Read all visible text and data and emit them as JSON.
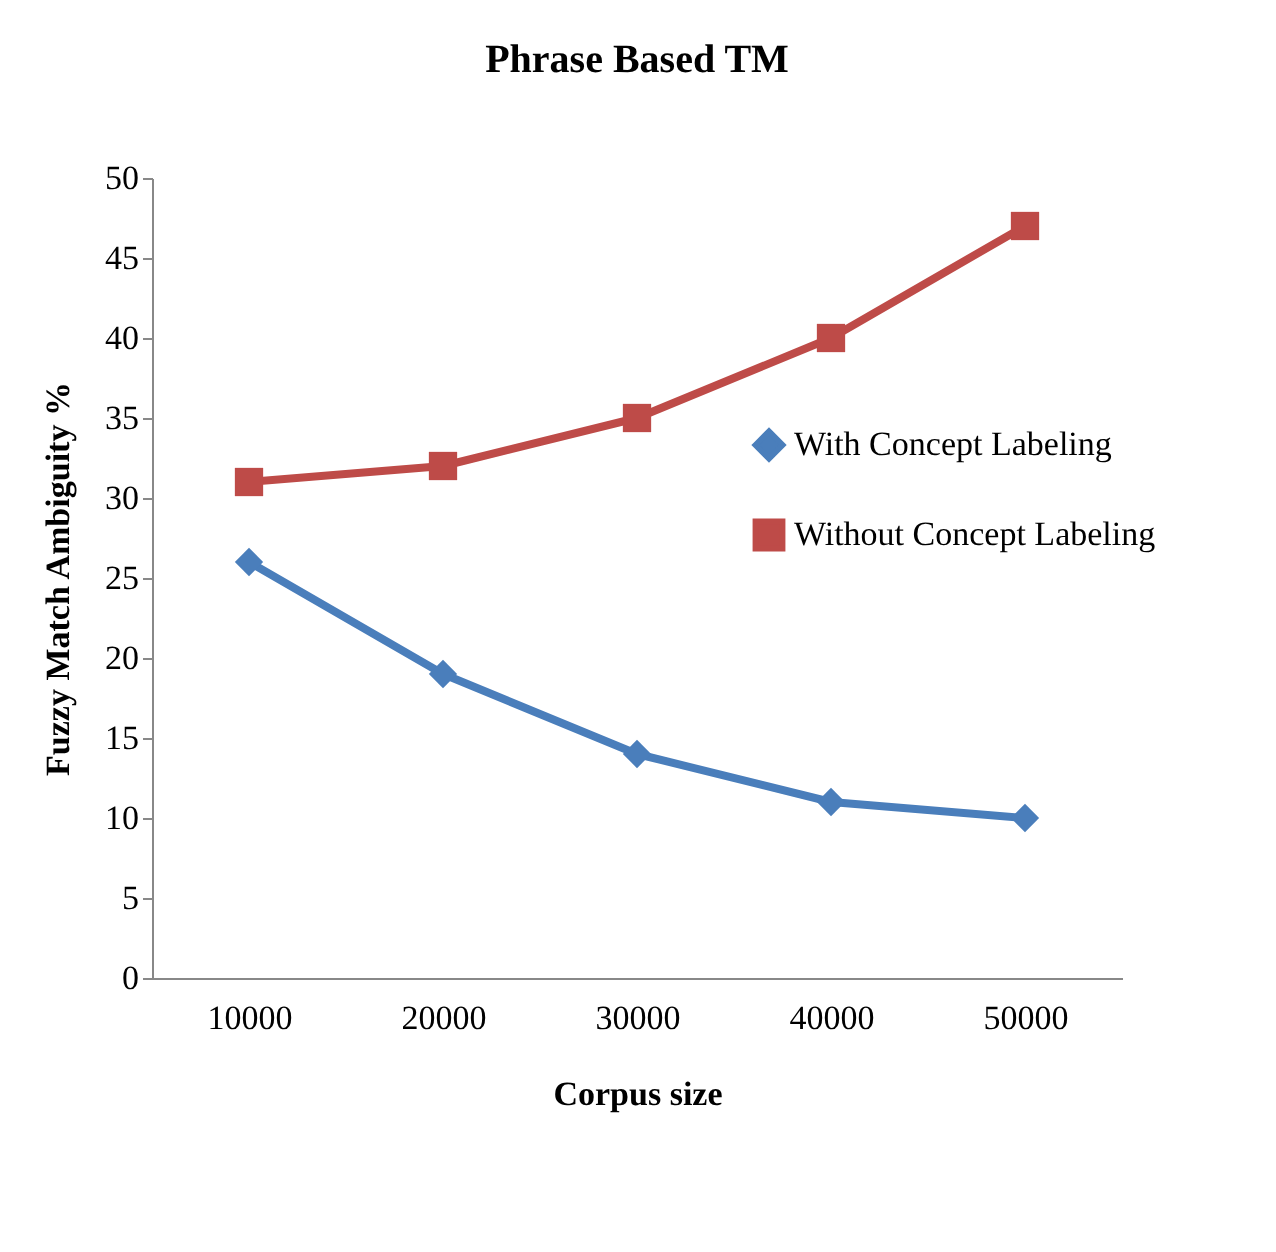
{
  "chart_data": {
    "type": "line",
    "title": "Phrase Based TM",
    "xlabel": "Corpus size",
    "ylabel": "Fuzzy Match Ambiguity %",
    "categories": [
      "10000",
      "20000",
      "30000",
      "40000",
      "50000"
    ],
    "series": [
      {
        "name": "With Concept Labeling",
        "color": "#4a7ebb",
        "marker": "diamond",
        "values": [
          26,
          19,
          14,
          11,
          10
        ]
      },
      {
        "name": "Without Concept Labeling",
        "color": "#be4b48",
        "marker": "square",
        "values": [
          31,
          32,
          35,
          40,
          47
        ]
      }
    ],
    "ylim": [
      0,
      50
    ],
    "yticks": [
      0,
      5,
      10,
      15,
      20,
      25,
      30,
      35,
      40,
      45,
      50
    ],
    "grid": false,
    "legend": "right",
    "line_style": "solid"
  }
}
